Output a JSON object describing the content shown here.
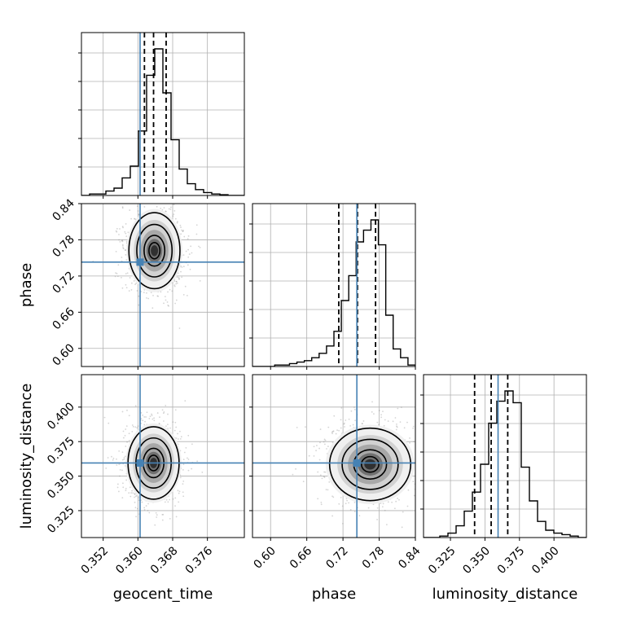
{
  "chart_data": {
    "type": "corner",
    "parameters": [
      "geocent_time",
      "phase",
      "luminosity_distance"
    ],
    "axis_labels": {
      "x": [
        "geocent_time",
        "phase",
        "luminosity_distance"
      ],
      "y": [
        "phase",
        "luminosity_distance"
      ]
    },
    "ranges": {
      "geocent_time": [
        0.347,
        0.3845
      ],
      "phase": [
        0.57,
        0.84
      ],
      "luminosity_distance": [
        0.3055,
        0.4235
      ]
    },
    "ticks": {
      "geocent_time": [
        0.352,
        0.36,
        0.368,
        0.376
      ],
      "phase": [
        0.6,
        0.66,
        0.72,
        0.78,
        0.84
      ],
      "luminosity_distance": [
        0.325,
        0.35,
        0.375,
        0.4
      ]
    },
    "tick_labels": {
      "geocent_time": [
        "0.352",
        "0.360",
        "0.368",
        "0.376"
      ],
      "phase": [
        "0.60",
        "0.66",
        "0.72",
        "0.78",
        "0.84"
      ],
      "luminosity_distance": [
        "0.325",
        "0.350",
        "0.375",
        "0.400"
      ]
    },
    "truths": {
      "geocent_time": 0.3605,
      "phase": 0.743,
      "luminosity_distance": 0.3595
    },
    "truth_color": "#4682b4",
    "quantiles": {
      "geocent_time": [
        0.3615,
        0.3636,
        0.3665
      ],
      "phase": [
        0.713,
        0.744,
        0.774
      ],
      "luminosity_distance": [
        0.3425,
        0.3545,
        0.3665
      ]
    },
    "histograms": {
      "geocent_time": [
        0,
        0.01,
        0.01,
        0.03,
        0.05,
        0.12,
        0.2,
        0.44,
        0.82,
        1.0,
        0.7,
        0.38,
        0.18,
        0.08,
        0.04,
        0.02,
        0.01,
        0.005,
        0,
        0
      ],
      "phase": [
        0,
        0,
        0,
        0.01,
        0.01,
        0.02,
        0.03,
        0.04,
        0.06,
        0.09,
        0.14,
        0.24,
        0.45,
        0.62,
        0.85,
        0.93,
        1.0,
        0.83,
        0.35,
        0.12,
        0.06,
        0.01
      ],
      "luminosity_distance": [
        0,
        0,
        0.01,
        0.03,
        0.08,
        0.18,
        0.31,
        0.5,
        0.78,
        0.93,
        1.0,
        0.92,
        0.48,
        0.25,
        0.11,
        0.05,
        0.03,
        0.02,
        0.01,
        0
      ]
    },
    "density_centers": {
      "phase_vs_geocent_time": [
        0.3638,
        0.762
      ],
      "luminosity_distance_vs_geocent_time": [
        0.3636,
        0.3595
      ],
      "luminosity_distance_vs_phase": [
        0.765,
        0.3585
      ]
    },
    "density_spread": {
      "phase_vs_geocent_time": [
        0.0028,
        0.03
      ],
      "luminosity_distance_vs_geocent_time": [
        0.0028,
        0.0125
      ],
      "luminosity_distance_vs_phase": [
        0.032,
        0.0125
      ]
    },
    "grid": true,
    "hist_color": "#000000",
    "contour_color": "#000000"
  }
}
